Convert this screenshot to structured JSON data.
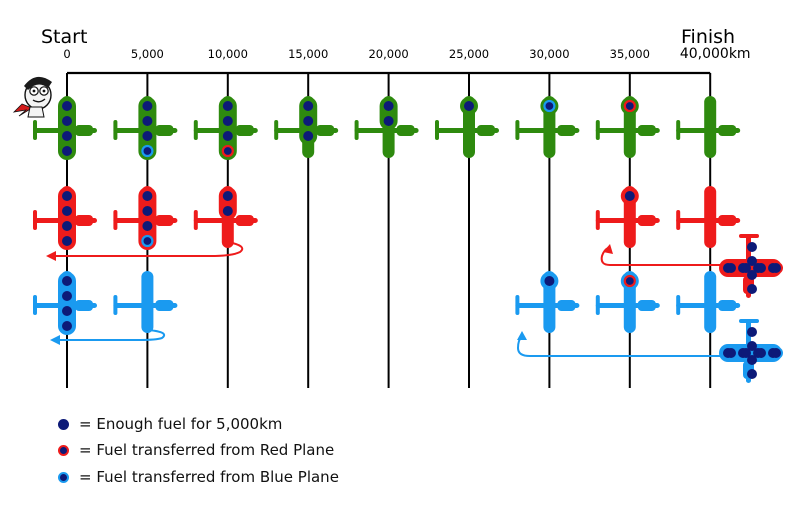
{
  "header": {
    "start_label": "Start",
    "finish_label": "Finish"
  },
  "scale": {
    "unit": "km",
    "ticks": [
      "0",
      "5,000",
      "10,000",
      "15,000",
      "20,000",
      "25,000",
      "30,000",
      "35,000",
      "40,000km"
    ]
  },
  "colors": {
    "green_plane": "#2e8a0e",
    "red_plane": "#ee1b1b",
    "blue_plane": "#1a9af0",
    "fuel_own": "#0d1a78",
    "fuel_red_ring": "#ee1b1b",
    "fuel_blue_ring": "#1a9af0"
  },
  "planes": {
    "green": [
      {
        "km": 0,
        "fuel": [
          "own",
          "own",
          "own",
          "own"
        ]
      },
      {
        "km": 5000,
        "fuel": [
          "own",
          "own",
          "own",
          "blue"
        ]
      },
      {
        "km": 10000,
        "fuel": [
          "own",
          "own",
          "own",
          "red"
        ]
      },
      {
        "km": 15000,
        "fuel": [
          "own",
          "own",
          "own"
        ]
      },
      {
        "km": 20000,
        "fuel": [
          "own",
          "own"
        ]
      },
      {
        "km": 25000,
        "fuel": [
          "own"
        ]
      },
      {
        "km": 30000,
        "fuel": [
          "blue"
        ]
      },
      {
        "km": 35000,
        "fuel": [
          "red"
        ]
      },
      {
        "km": 40000,
        "fuel": []
      }
    ],
    "red": [
      {
        "km": 0,
        "fuel": [
          "own",
          "own",
          "own",
          "own"
        ]
      },
      {
        "km": 5000,
        "fuel": [
          "own",
          "own",
          "own",
          "blue"
        ]
      },
      {
        "km": 10000,
        "fuel": [
          "own",
          "own"
        ]
      },
      {
        "km": 35000,
        "fuel": [
          "own"
        ]
      },
      {
        "km": 40000,
        "fuel": []
      }
    ],
    "red_wrap": {
      "fuel": [
        "own",
        "own",
        "own",
        "own"
      ]
    },
    "blue": [
      {
        "km": 0,
        "fuel": [
          "own",
          "own",
          "own",
          "own"
        ]
      },
      {
        "km": 5000,
        "fuel": []
      },
      {
        "km": 30000,
        "fuel": [
          "own"
        ]
      },
      {
        "km": 35000,
        "fuel": [
          "red"
        ]
      },
      {
        "km": 40000,
        "fuel": []
      }
    ],
    "blue_wrap": {
      "fuel": [
        "own",
        "own",
        "own",
        "own"
      ]
    }
  },
  "legend": [
    {
      "icon": "own",
      "text": "= Enough fuel for 5,000km"
    },
    {
      "icon": "red",
      "text": "= Fuel transferred from Red Plane"
    },
    {
      "icon": "blue",
      "text": "= Fuel transferred from Blue Plane"
    }
  ]
}
